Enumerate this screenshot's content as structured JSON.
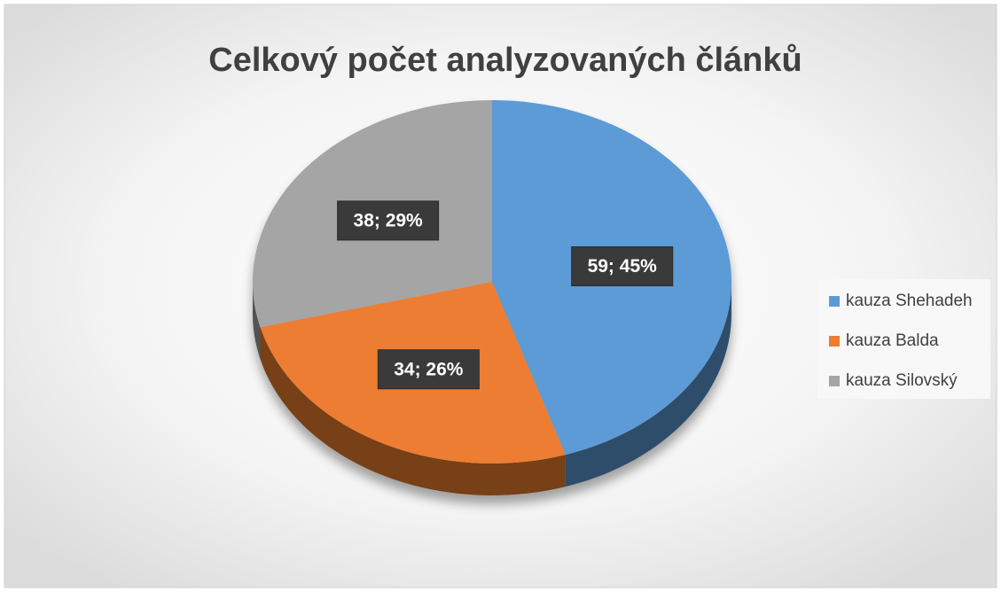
{
  "chart_data": {
    "type": "pie3d",
    "title": "Celkový počet analyzovaných článků",
    "categories": [
      "kauza Shehadeh",
      "kauza Balda",
      "kauza Silovský"
    ],
    "values": [
      59,
      34,
      38
    ],
    "value_labels": [
      "59; 45%",
      "34; 26%",
      "38; 29%"
    ],
    "colors": [
      "#5b9bd5",
      "#ed7d31",
      "#a5a5a5"
    ],
    "legend": "right"
  }
}
